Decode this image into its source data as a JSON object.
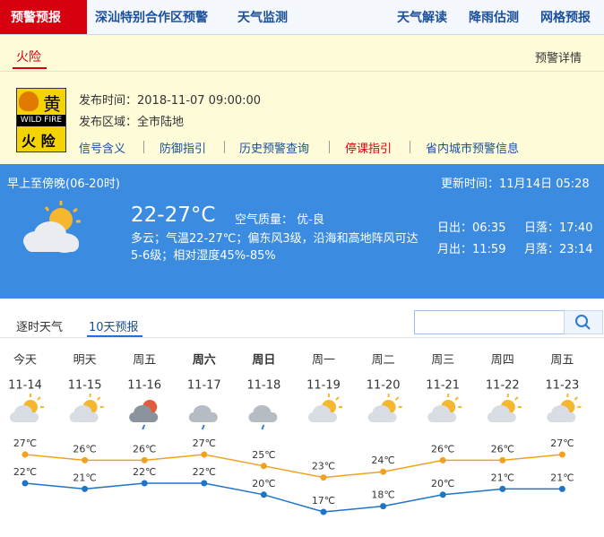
{
  "nav": {
    "active": "预警预报",
    "items": [
      "深汕特别合作区预警",
      "天气监测"
    ],
    "right": [
      "天气解读",
      "降雨估测",
      "网格预报"
    ]
  },
  "warning": {
    "tab": "火险",
    "detail_link": "预警详情",
    "icon": {
      "level": "黄",
      "english": "WILD FIRE",
      "name": "火 险"
    },
    "publish_time": "发布时间：2018-11-07 09:00:00",
    "area": "发布区域：全市陆地",
    "links": [
      "信号含义",
      "防御指引",
      "历史预警查询",
      "停课指引",
      "省内城市预警信息"
    ]
  },
  "today": {
    "period": "早上至傍晚(06-20时)",
    "update_time": "更新时间：11月14日 05:28",
    "temp": "22-27°C",
    "air_quality": "空气质量： 优-良",
    "desc": "多云；气温22-27℃；偏东风3级，沿海和高地阵风可达5-6级；相对湿度45%-85%",
    "sunrise": "日出：06:35",
    "sunset": "日落：17:40",
    "moonrise": "月出：11:59",
    "moonset": "月落：23:14"
  },
  "forecast_tabs": [
    "逐时天气",
    "10天预报"
  ],
  "chart_data": {
    "type": "line",
    "categories": [
      "今天",
      "明天",
      "周五",
      "周六",
      "周日",
      "周一",
      "周二",
      "周三",
      "周四",
      "周五"
    ],
    "dates": [
      "11-14",
      "11-15",
      "11-16",
      "11-17",
      "11-18",
      "11-19",
      "11-20",
      "11-21",
      "11-22",
      "11-23"
    ],
    "series": [
      {
        "color": "#f0a21e",
        "values": [
          27,
          26,
          26,
          27,
          25,
          23,
          24,
          26,
          26,
          27
        ],
        "value_labels": [
          "27℃",
          "26℃",
          "26℃",
          "27℃",
          "25℃",
          "23℃",
          "24℃",
          "26℃",
          "26℃",
          "27℃"
        ]
      },
      {
        "color": "#1f73c9",
        "values": [
          22,
          21,
          22,
          22,
          20,
          17,
          18,
          20,
          21,
          21
        ],
        "value_labels": [
          "22℃",
          "21℃",
          "22℃",
          "22℃",
          "20℃",
          "17℃",
          "18℃",
          "20℃",
          "21℃",
          "21℃"
        ]
      }
    ]
  }
}
